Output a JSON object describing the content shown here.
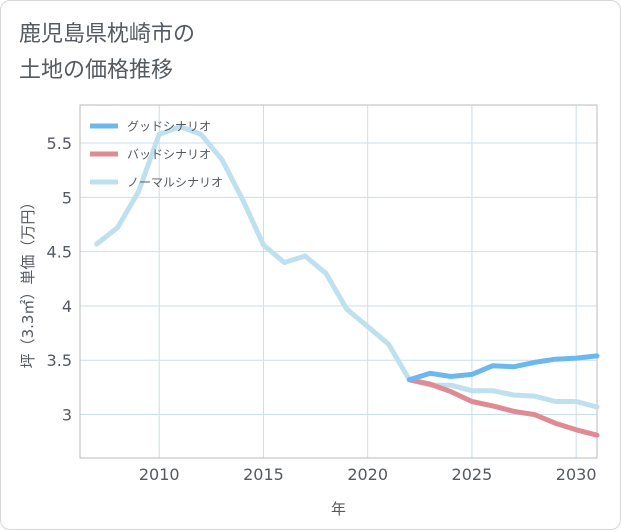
{
  "title_lines": [
    "鹿児島県枕崎市の",
    "土地の価格推移"
  ],
  "chart_data": {
    "type": "line",
    "xlabel": "年",
    "ylabel": "坪（3.3㎡）単価（万円）",
    "xlim": [
      2006.2,
      2031
    ],
    "ylim": [
      2.6,
      5.85
    ],
    "xticks": [
      2010,
      2015,
      2020,
      2025,
      2030
    ],
    "yticks": [
      3,
      3.5,
      4,
      4.5,
      5,
      5.5
    ],
    "yticklabels": [
      "3",
      "3.5",
      "4",
      "4.5",
      "5",
      "5.5"
    ],
    "grid": true,
    "legend_position": "top-left",
    "series": [
      {
        "name": "グッドシナリオ",
        "color": "#6cb8ee",
        "x": [
          2022,
          2023,
          2024,
          2025,
          2026,
          2027,
          2028,
          2029,
          2030,
          2031
        ],
        "y": [
          3.32,
          3.38,
          3.35,
          3.37,
          3.45,
          3.44,
          3.48,
          3.51,
          3.52,
          3.54
        ]
      },
      {
        "name": "バッドシナリオ",
        "color": "#e08a94",
        "x": [
          2022,
          2023,
          2024,
          2025,
          2026,
          2027,
          2028,
          2029,
          2030,
          2031
        ],
        "y": [
          3.32,
          3.28,
          3.21,
          3.12,
          3.08,
          3.03,
          3.0,
          2.92,
          2.86,
          2.81
        ]
      },
      {
        "name": "ノーマルシナリオ",
        "color": "#bfe0ee",
        "x": [
          2007,
          2008,
          2009,
          2010,
          2011,
          2012,
          2013,
          2014,
          2015,
          2016,
          2017,
          2018,
          2019,
          2020,
          2021,
          2022,
          2023,
          2024,
          2025,
          2026,
          2027,
          2028,
          2029,
          2030,
          2031
        ],
        "y": [
          4.57,
          4.72,
          5.05,
          5.58,
          5.65,
          5.58,
          5.35,
          4.98,
          4.56,
          4.4,
          4.46,
          4.3,
          3.97,
          3.81,
          3.65,
          3.32,
          3.27,
          3.27,
          3.22,
          3.22,
          3.18,
          3.17,
          3.12,
          3.12,
          3.07
        ]
      }
    ]
  }
}
